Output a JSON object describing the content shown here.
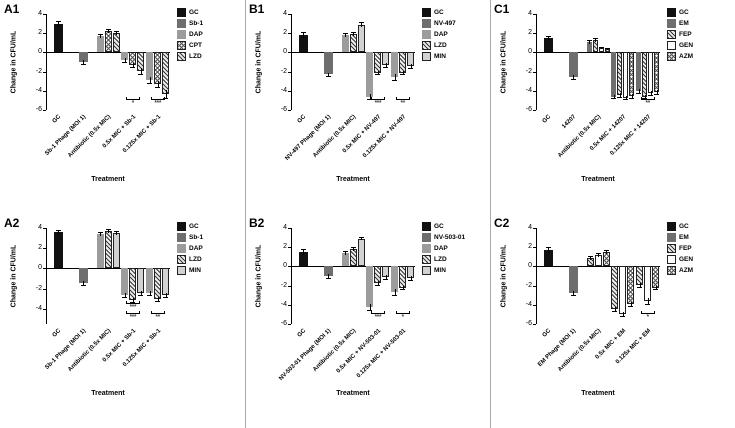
{
  "figure": {
    "ylabel": "Change in CFU/mL",
    "xlabel": "Treatment"
  },
  "chart_data": [
    {
      "type": "bar",
      "id": "A1",
      "ylabel": "Change in CFU/mL",
      "xlabel": "Treatment",
      "ylim": [
        -6,
        4
      ],
      "yticks": [
        4,
        2,
        0,
        -2,
        -4,
        -6
      ],
      "legend": [
        {
          "name": "GC",
          "pattern": "solid-black"
        },
        {
          "name": "Sb-1",
          "pattern": "solid-dark"
        },
        {
          "name": "DAP",
          "pattern": "solid-mid"
        },
        {
          "name": "CPT",
          "pattern": "hatch-cross"
        },
        {
          "name": "LZD",
          "pattern": "hatch-diag"
        }
      ],
      "groups": [
        {
          "label": "GC",
          "sig": [],
          "bars": [
            {
              "pattern": "solid-black",
              "value": 3.0,
              "err": 0.3
            }
          ]
        },
        {
          "label": "Sb-1 Phage (MOI 1)",
          "sig": [],
          "bars": [
            {
              "pattern": "solid-dark",
              "value": -1.0,
              "err": 0.2
            }
          ]
        },
        {
          "label": "Antibiotic (0.5x MIC)",
          "sig": [],
          "bars": [
            {
              "pattern": "solid-mid",
              "value": 1.7,
              "err": 0.2
            },
            {
              "pattern": "hatch-cross",
              "value": 2.2,
              "err": 0.2
            },
            {
              "pattern": "hatch-diag",
              "value": 2.0,
              "err": 0.2
            }
          ]
        },
        {
          "label": "0.5x MIC + Sb-1",
          "sig": [
            "*"
          ],
          "bars": [
            {
              "pattern": "solid-mid",
              "value": -0.8,
              "err": 0.2
            },
            {
              "pattern": "hatch-cross",
              "value": -1.3,
              "err": 0.2
            },
            {
              "pattern": "hatch-diag",
              "value": -1.9,
              "err": 0.3
            }
          ]
        },
        {
          "label": "0.125x MIC + Sb-1",
          "sig": [
            "***"
          ],
          "bars": [
            {
              "pattern": "solid-mid",
              "value": -2.9,
              "err": 0.3
            },
            {
              "pattern": "hatch-cross",
              "value": -3.3,
              "err": 0.3
            },
            {
              "pattern": "hatch-diag",
              "value": -4.3,
              "err": 0.4
            }
          ]
        }
      ]
    },
    {
      "type": "bar",
      "id": "B1",
      "ylabel": "Change in CFU/mL",
      "xlabel": "Treatment",
      "ylim": [
        -6,
        4
      ],
      "yticks": [
        4,
        2,
        0,
        -2,
        -4,
        -6
      ],
      "legend": [
        {
          "name": "GC",
          "pattern": "solid-black"
        },
        {
          "name": "NV-497",
          "pattern": "solid-dark"
        },
        {
          "name": "DAP",
          "pattern": "solid-mid"
        },
        {
          "name": "LZD",
          "pattern": "hatch-diag"
        },
        {
          "name": "MIN",
          "pattern": "hatch-dots"
        }
      ],
      "groups": [
        {
          "label": "GC",
          "sig": [],
          "bars": [
            {
              "pattern": "solid-black",
              "value": 1.8,
              "err": 0.3
            }
          ]
        },
        {
          "label": "NV-497 Phage (MOI 1)",
          "sig": [],
          "bars": [
            {
              "pattern": "solid-dark",
              "value": -2.3,
              "err": 0.2
            }
          ]
        },
        {
          "label": "Antibiotic (0.5x MIC)",
          "sig": [],
          "bars": [
            {
              "pattern": "solid-mid",
              "value": 1.8,
              "err": 0.2
            },
            {
              "pattern": "hatch-diag",
              "value": 1.9,
              "err": 0.2
            },
            {
              "pattern": "hatch-dots",
              "value": 2.9,
              "err": 0.3
            }
          ]
        },
        {
          "label": "0.5x MIC + NV-497",
          "sig": [
            "***"
          ],
          "bars": [
            {
              "pattern": "solid-mid",
              "value": -4.6,
              "err": 0.3
            },
            {
              "pattern": "hatch-diag",
              "value": -2.1,
              "err": 0.2
            },
            {
              "pattern": "hatch-dots",
              "value": -1.3,
              "err": 0.2
            }
          ]
        },
        {
          "label": "0.125x MIC + NV-497",
          "sig": [
            "**"
          ],
          "bars": [
            {
              "pattern": "solid-mid",
              "value": -2.6,
              "err": 0.3
            },
            {
              "pattern": "hatch-diag",
              "value": -2.1,
              "err": 0.2
            },
            {
              "pattern": "hatch-dots",
              "value": -1.4,
              "err": 0.2
            }
          ]
        }
      ]
    },
    {
      "type": "bar",
      "id": "C1",
      "ylabel": "Change in CFU/mL",
      "xlabel": "Treatment",
      "ylim": [
        -6,
        4
      ],
      "yticks": [
        4,
        2,
        0,
        -2,
        -4,
        -6
      ],
      "legend": [
        {
          "name": "GC",
          "pattern": "solid-black"
        },
        {
          "name": "EM",
          "pattern": "solid-dark"
        },
        {
          "name": "FEP",
          "pattern": "hatch-diag"
        },
        {
          "name": "GEN",
          "pattern": "solid-white"
        },
        {
          "name": "AZM",
          "pattern": "hatch-cross"
        }
      ],
      "groups": [
        {
          "label": "GC",
          "sig": [],
          "bars": [
            {
              "pattern": "solid-black",
              "value": 1.5,
              "err": 0.2
            }
          ]
        },
        {
          "label": "14207",
          "sig": [],
          "bars": [
            {
              "pattern": "solid-dark",
              "value": -2.6,
              "err": 0.2
            }
          ]
        },
        {
          "label": "Antibiotic (0.5x MIC)",
          "sig": [],
          "bars": [
            {
              "pattern": "solid-dark",
              "value": 1.1,
              "err": 0.2
            },
            {
              "pattern": "hatch-diag",
              "value": 1.3,
              "err": 0.2
            },
            {
              "pattern": "solid-white",
              "value": 0.5,
              "err": 0.1
            },
            {
              "pattern": "hatch-cross",
              "value": 0.4,
              "err": 0.1
            }
          ]
        },
        {
          "label": "0.5x MIC + 14207",
          "sig": [],
          "bars": [
            {
              "pattern": "solid-dark",
              "value": -4.6,
              "err": 0.2
            },
            {
              "pattern": "hatch-diag",
              "value": -4.4,
              "err": 0.2
            },
            {
              "pattern": "solid-white",
              "value": -4.7,
              "err": 0.2
            },
            {
              "pattern": "hatch-cross",
              "value": -4.5,
              "err": 0.2
            }
          ]
        },
        {
          "label": "0.125x MIC + 14207",
          "sig": [
            "**"
          ],
          "bars": [
            {
              "pattern": "solid-dark",
              "value": -4.0,
              "err": 0.2
            },
            {
              "pattern": "hatch-diag",
              "value": -4.6,
              "err": 0.2
            },
            {
              "pattern": "solid-white",
              "value": -4.2,
              "err": 0.2
            },
            {
              "pattern": "hatch-cross",
              "value": -4.1,
              "err": 0.2
            }
          ]
        }
      ]
    },
    {
      "type": "bar",
      "id": "A2",
      "ylabel": "Change in CFU/mL",
      "xlabel": "Treatment",
      "ylim": [
        -5.5,
        4
      ],
      "yticks": [
        4,
        2,
        0,
        -2,
        -4
      ],
      "legend": [
        {
          "name": "GC",
          "pattern": "solid-black"
        },
        {
          "name": "Sb-1",
          "pattern": "solid-dark"
        },
        {
          "name": "DAP",
          "pattern": "solid-mid"
        },
        {
          "name": "LZD",
          "pattern": "hatch-diag"
        },
        {
          "name": "MIN",
          "pattern": "hatch-dots"
        }
      ],
      "groups": [
        {
          "label": "GC",
          "sig": [],
          "bars": [
            {
              "pattern": "solid-black",
              "value": 3.6,
              "err": 0.2
            }
          ]
        },
        {
          "label": "Sb-1 Phage (MOI 1)",
          "sig": [],
          "bars": [
            {
              "pattern": "solid-dark",
              "value": -1.4,
              "err": 0.2
            }
          ]
        },
        {
          "label": "Antibiotic (0.5x MIC)",
          "sig": [],
          "bars": [
            {
              "pattern": "solid-mid",
              "value": 3.4,
              "err": 0.2
            },
            {
              "pattern": "hatch-diag",
              "value": 3.7,
              "err": 0.2
            },
            {
              "pattern": "hatch-dots",
              "value": 3.5,
              "err": 0.2
            }
          ]
        },
        {
          "label": "0.5x MIC + Sb-1",
          "sig": [
            "***",
            "***"
          ],
          "bars": [
            {
              "pattern": "solid-mid",
              "value": -2.6,
              "err": 0.2
            },
            {
              "pattern": "hatch-diag",
              "value": -3.1,
              "err": 0.2
            },
            {
              "pattern": "hatch-dots",
              "value": -2.4,
              "err": 0.2
            }
          ]
        },
        {
          "label": "0.125x MIC + Sb-1",
          "sig": [
            "**"
          ],
          "bars": [
            {
              "pattern": "solid-mid",
              "value": -2.4,
              "err": 0.2
            },
            {
              "pattern": "hatch-diag",
              "value": -3.0,
              "err": 0.2
            },
            {
              "pattern": "hatch-dots",
              "value": -2.6,
              "err": 0.2
            }
          ]
        }
      ]
    },
    {
      "type": "bar",
      "id": "B2",
      "ylabel": "Change in CFU/mL",
      "xlabel": "Treatment",
      "ylim": [
        -6,
        4
      ],
      "yticks": [
        4,
        2,
        0,
        -2,
        -4,
        -6
      ],
      "legend": [
        {
          "name": "GC",
          "pattern": "solid-black"
        },
        {
          "name": "NV-503-01",
          "pattern": "solid-dark"
        },
        {
          "name": "DAP",
          "pattern": "solid-mid"
        },
        {
          "name": "LZD",
          "pattern": "hatch-diag"
        },
        {
          "name": "MIN",
          "pattern": "hatch-dots"
        }
      ],
      "groups": [
        {
          "label": "GC",
          "sig": [],
          "bars": [
            {
              "pattern": "solid-black",
              "value": 1.5,
              "err": 0.3
            }
          ]
        },
        {
          "label": "NV-503-01 Phage (MOI 1)",
          "sig": [],
          "bars": [
            {
              "pattern": "solid-dark",
              "value": -1.0,
              "err": 0.2
            }
          ]
        },
        {
          "label": "Antibiotic (0.5x MIC)",
          "sig": [],
          "bars": [
            {
              "pattern": "solid-mid",
              "value": 1.4,
              "err": 0.2
            },
            {
              "pattern": "hatch-diag",
              "value": 1.8,
              "err": 0.2
            },
            {
              "pattern": "hatch-dots",
              "value": 2.9,
              "err": 0.2
            }
          ]
        },
        {
          "label": "0.5x MIC + NV-503-01",
          "sig": [
            "***"
          ],
          "bars": [
            {
              "pattern": "solid-mid",
              "value": -4.2,
              "err": 0.3
            },
            {
              "pattern": "hatch-diag",
              "value": -1.7,
              "err": 0.2
            },
            {
              "pattern": "hatch-dots",
              "value": -1.1,
              "err": 0.2
            }
          ]
        },
        {
          "label": "0.125x MIC + NV-503-01",
          "sig": [
            "*"
          ],
          "bars": [
            {
              "pattern": "solid-mid",
              "value": -2.7,
              "err": 0.3
            },
            {
              "pattern": "hatch-diag",
              "value": -2.2,
              "err": 0.2
            },
            {
              "pattern": "hatch-dots",
              "value": -1.2,
              "err": 0.2
            }
          ]
        }
      ]
    },
    {
      "type": "bar",
      "id": "C2",
      "ylabel": "Change in CFU/mL",
      "xlabel": "Treatment",
      "ylim": [
        -6,
        4
      ],
      "yticks": [
        4,
        2,
        0,
        -2,
        -4,
        -6
      ],
      "legend": [
        {
          "name": "GC",
          "pattern": "solid-black"
        },
        {
          "name": "EM",
          "pattern": "solid-dark"
        },
        {
          "name": "FEP",
          "pattern": "hatch-diag"
        },
        {
          "name": "GEN",
          "pattern": "solid-white"
        },
        {
          "name": "AZM",
          "pattern": "hatch-cross"
        }
      ],
      "groups": [
        {
          "label": "GC",
          "sig": [],
          "bars": [
            {
              "pattern": "solid-black",
              "value": 1.7,
              "err": 0.3
            }
          ]
        },
        {
          "label": "EM Phage (MOI 1)",
          "sig": [],
          "bars": [
            {
              "pattern": "solid-dark",
              "value": -2.8,
              "err": 0.2
            }
          ]
        },
        {
          "label": "Antibiotic (0.5x MIC)",
          "sig": [],
          "bars": [
            {
              "pattern": "hatch-diag",
              "value": 0.9,
              "err": 0.2
            },
            {
              "pattern": "solid-white",
              "value": 1.2,
              "err": 0.2
            },
            {
              "pattern": "hatch-cross",
              "value": 1.5,
              "err": 0.2
            }
          ]
        },
        {
          "label": "0.5x MIC + EM",
          "sig": [],
          "bars": [
            {
              "pattern": "hatch-diag",
              "value": -4.4,
              "err": 0.2
            },
            {
              "pattern": "solid-white",
              "value": -5.0,
              "err": 0.2
            },
            {
              "pattern": "hatch-cross",
              "value": -3.9,
              "err": 0.2
            }
          ]
        },
        {
          "label": "0.125x MIC + EM",
          "sig": [
            "*"
          ],
          "bars": [
            {
              "pattern": "hatch-diag",
              "value": -1.9,
              "err": 0.2
            },
            {
              "pattern": "solid-white",
              "value": -3.6,
              "err": 0.3
            },
            {
              "pattern": "hatch-cross",
              "value": -2.2,
              "err": 0.2
            }
          ]
        }
      ]
    }
  ]
}
